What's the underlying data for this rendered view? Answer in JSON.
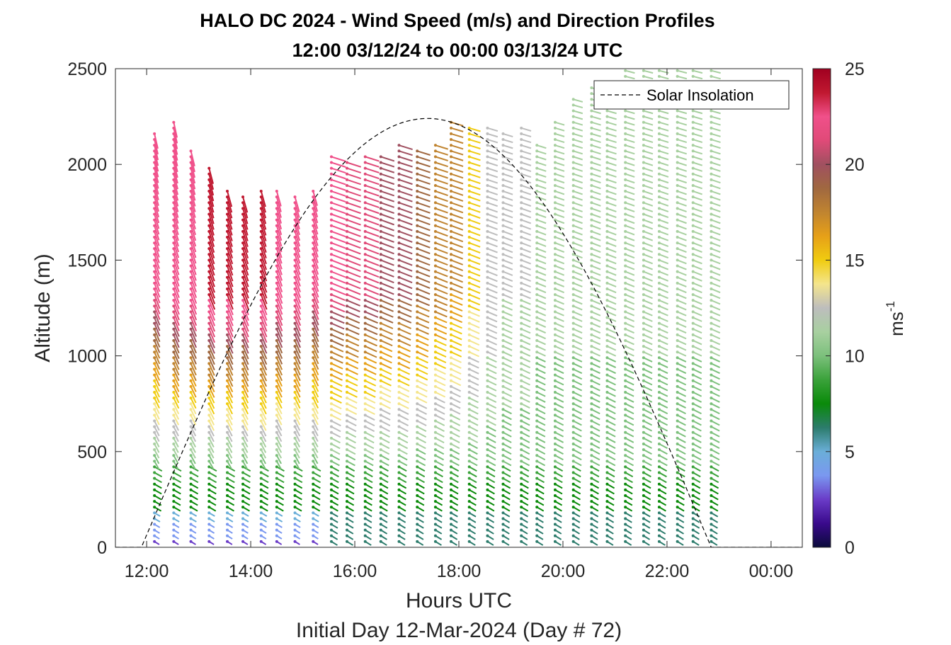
{
  "chart_data": {
    "type": "quiver-profile",
    "title_line1": "HALO DC 2024 - Wind Speed (m/s) and Direction Profiles",
    "title_line2": "12:00 03/12/24 to 00:00 03/13/24  UTC",
    "xlabel": "Hours UTC",
    "xlabel2": "Initial Day 12-Mar-2024 (Day # 72)",
    "ylabel": "Altitude (m)",
    "colorbar_label": "ms",
    "colorbar_label_exp": "-1",
    "xlim": [
      11.4,
      24.6
    ],
    "ylim": [
      0,
      2500
    ],
    "xticks": [
      12,
      14,
      16,
      18,
      20,
      22,
      24
    ],
    "xtick_labels": [
      "12:00",
      "14:00",
      "16:00",
      "18:00",
      "20:00",
      "22:00",
      "00:00"
    ],
    "yticks": [
      0,
      500,
      1000,
      1500,
      2000,
      2500
    ],
    "ytick_labels": [
      "0",
      "500",
      "1000",
      "1500",
      "2000",
      "2500"
    ],
    "colorbar_ticks": [
      0,
      5,
      10,
      15,
      20,
      25
    ],
    "colorbar_tick_labels": [
      "0",
      "5",
      "10",
      "15",
      "20",
      "25"
    ],
    "clim": [
      0,
      25
    ],
    "legend": {
      "label": "Solar Insolation",
      "placement": "top-right"
    },
    "colormap": [
      "#0b0b3b",
      "#3a0a8c",
      "#6a3cc8",
      "#7a98f0",
      "#6aaed8",
      "#2c7c6c",
      "#0a8a0a",
      "#3aa23a",
      "#7cc07c",
      "#a8d0a0",
      "#bdbdbd",
      "#f4e58c",
      "#f0cc10",
      "#e6a018",
      "#c08430",
      "#a06840",
      "#a05060",
      "#e04a78",
      "#f0508a",
      "#c01830",
      "#a00020"
    ],
    "profile_times_h": [
      12.15,
      12.52,
      12.85,
      13.2,
      13.55,
      13.85,
      14.2,
      14.5,
      14.85,
      15.2,
      15.55,
      15.85,
      16.2,
      16.5,
      16.85,
      17.2,
      17.55,
      17.85,
      18.2,
      18.55,
      18.85,
      19.2,
      19.5,
      19.85,
      20.2,
      20.55,
      20.85,
      21.2,
      21.55,
      21.85,
      22.2,
      22.5,
      22.85
    ],
    "profile_top_m": [
      2180,
      2230,
      2090,
      2000,
      1860,
      1840,
      1870,
      1870,
      1850,
      1870,
      2050,
      2010,
      2040,
      2060,
      2110,
      2090,
      2100,
      2230,
      2210,
      2200,
      2160,
      2200,
      2120,
      2230,
      2360,
      2410,
      2450,
      2500,
      2500,
      2490,
      2500,
      2500,
      2500
    ],
    "high_level_wind_speed_ms": [
      22,
      23,
      23,
      24,
      24,
      24,
      24,
      23,
      23,
      22,
      22,
      21,
      21,
      20,
      20,
      19,
      18,
      17,
      15,
      13,
      12,
      12,
      11,
      11,
      11,
      11,
      11,
      11,
      11,
      11,
      11,
      11,
      11
    ],
    "solar_insolation": {
      "start_h": 11.9,
      "end_h": 22.85,
      "peak_h": 17.4,
      "peak_altitude_m": 2240
    }
  }
}
